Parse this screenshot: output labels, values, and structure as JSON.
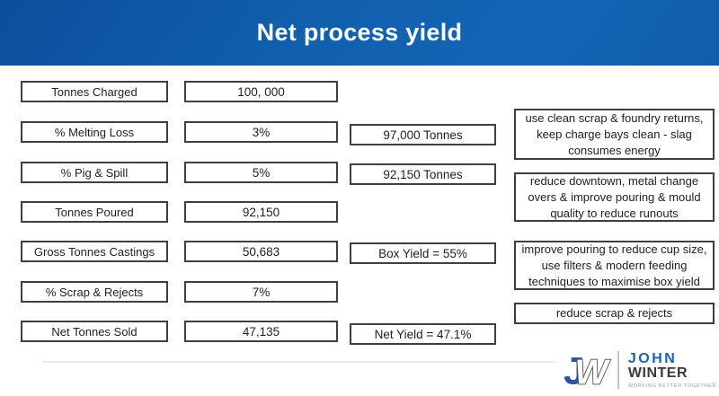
{
  "header": {
    "title": "Net process yield"
  },
  "flow": {
    "rows": [
      {
        "label": "Tonnes Charged",
        "value": "100, 000",
        "result": ""
      },
      {
        "label": "% Melting Loss",
        "value": "3%",
        "result": "97,000 Tonnes"
      },
      {
        "label": "% Pig & Spill",
        "value": "5%",
        "result": "92,150 Tonnes"
      },
      {
        "label": "Tonnes Poured",
        "value": "92,150",
        "result": ""
      },
      {
        "label": "Gross Tonnes Castings",
        "value": "50,683",
        "result": "Box Yield = 55%"
      },
      {
        "label": "% Scrap & Rejects",
        "value": "7%",
        "result": ""
      },
      {
        "label": "Net Tonnes Sold",
        "value": "47,135",
        "result": "Net Yield = 47.1%"
      }
    ]
  },
  "notes": [
    {
      "text": "use clean scrap & foundry returns, keep charge bays clean - slag consumes energy"
    },
    {
      "text": "reduce downtown, metal change overs & improve pouring & mould quality to reduce runouts"
    },
    {
      "text": "improve pouring to reduce cup size, use filters & modern feeding techniques to maximise box yield"
    },
    {
      "text": "reduce scrap & rejects"
    }
  ],
  "logo": {
    "monogram_j": "J",
    "monogram_w": "W",
    "name_top": "JOHN",
    "name_bottom": "WINTER",
    "tagline": "WORKING BETTER TOGETHER"
  },
  "colors": {
    "header_blue_dark": "#0c4e9c",
    "header_blue": "#1365b6",
    "box_border": "#3f3f3f",
    "text": "#1f1f1f",
    "logo_j_blue": "#2e51a3",
    "logo_john_blue": "#1b63ae",
    "logo_winter_gray": "#3a3a3a",
    "logo_tagline_gray": "#9b9b9b"
  }
}
